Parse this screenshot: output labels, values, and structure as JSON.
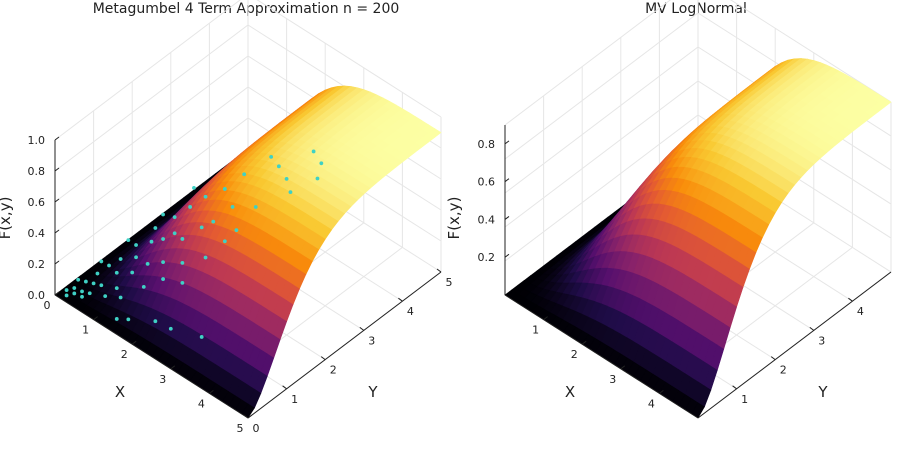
{
  "chart_data": [
    {
      "type": "surface",
      "title": "Metagumbel 4 Term Approximation n = 200",
      "xlabel": "X",
      "ylabel": "Y",
      "zlabel": "F(x,y)",
      "xlim": [
        0,
        5
      ],
      "ylim": [
        0,
        5
      ],
      "zlim": [
        0,
        1.0
      ],
      "x_ticks": [
        "0",
        "1",
        "2",
        "3",
        "4",
        "5"
      ],
      "y_ticks": [
        "0",
        "1",
        "2",
        "3",
        "4",
        "5"
      ],
      "z_ticks": [
        "0.0",
        "0.2",
        "0.4",
        "0.6",
        "0.8",
        "1.0"
      ],
      "colormap": "inferno",
      "grid": true,
      "surface_peak": 0.9,
      "scatter": {
        "color": "#3fd1c5",
        "points": [
          [
            0.1,
            0.2,
            0.01
          ],
          [
            0.2,
            0.1,
            0.01
          ],
          [
            0.2,
            0.3,
            0.02
          ],
          [
            0.3,
            0.2,
            0.02
          ],
          [
            0.1,
            0.5,
            0.02
          ],
          [
            0.4,
            0.3,
            0.03
          ],
          [
            0.3,
            0.5,
            0.04
          ],
          [
            0.5,
            0.2,
            0.03
          ],
          [
            0.5,
            0.5,
            0.06
          ],
          [
            0.6,
            0.3,
            0.05
          ],
          [
            0.4,
            0.7,
            0.07
          ],
          [
            0.7,
            0.5,
            0.08
          ],
          [
            0.5,
            0.9,
            0.1
          ],
          [
            0.8,
            0.8,
            0.12
          ],
          [
            0.9,
            0.4,
            0.06
          ],
          [
            1.0,
            0.6,
            0.09
          ],
          [
            0.6,
            1.1,
            0.12
          ],
          [
            1.1,
            0.9,
            0.15
          ],
          [
            0.9,
            1.2,
            0.16
          ],
          [
            1.2,
            0.5,
            0.08
          ],
          [
            0.7,
            1.4,
            0.17
          ],
          [
            1.3,
            1.1,
            0.2
          ],
          [
            1.0,
            1.5,
            0.22
          ],
          [
            1.5,
            0.8,
            0.14
          ],
          [
            1.2,
            1.6,
            0.25
          ],
          [
            1.6,
            1.2,
            0.24
          ],
          [
            0.8,
            1.8,
            0.22
          ],
          [
            1.4,
            1.7,
            0.3
          ],
          [
            1.8,
            1.0,
            0.2
          ],
          [
            1.1,
            2.0,
            0.3
          ],
          [
            1.7,
            1.6,
            0.33
          ],
          [
            2.0,
            1.3,
            0.28
          ],
          [
            1.3,
            2.2,
            0.36
          ],
          [
            1.9,
            1.9,
            0.38
          ],
          [
            2.2,
            1.1,
            0.22
          ],
          [
            1.5,
            2.4,
            0.42
          ],
          [
            2.1,
            2.0,
            0.43
          ],
          [
            2.4,
            1.5,
            0.34
          ],
          [
            1.8,
            2.6,
            0.48
          ],
          [
            2.3,
            2.3,
            0.5
          ],
          [
            2.6,
            1.8,
            0.42
          ],
          [
            2.0,
            2.9,
            0.55
          ],
          [
            2.8,
            2.4,
            0.56
          ],
          [
            3.0,
            3.0,
            0.66
          ],
          [
            2.6,
            3.2,
            0.64
          ],
          [
            3.3,
            2.8,
            0.66
          ],
          [
            2.4,
            0.6,
            0.05
          ],
          [
            2.9,
            0.9,
            0.02
          ],
          [
            1.6,
            0.3,
            0.04
          ],
          [
            2.1,
            0.5,
            0.07
          ],
          [
            0.3,
            1.6,
            0.1
          ],
          [
            0.2,
            1.0,
            0.06
          ],
          [
            3.4,
            3.5,
            0.73
          ],
          [
            3.6,
            3.2,
            0.72
          ],
          [
            1.0,
            2.6,
            0.36
          ],
          [
            2.2,
            3.4,
            0.6
          ],
          [
            0.6,
            2.2,
            0.2
          ],
          [
            1.4,
            0.2,
            0.03
          ],
          [
            3.1,
            3.6,
            0.74
          ],
          [
            2.7,
            2.0,
            0.47
          ]
        ]
      }
    },
    {
      "type": "surface",
      "title": "MV LogNormal",
      "xlabel": "X",
      "ylabel": "Y",
      "zlabel": "F(x,y)",
      "xlim": [
        0,
        5
      ],
      "ylim": [
        0,
        5
      ],
      "zlim": [
        0,
        0.9
      ],
      "x_ticks": [
        "1",
        "2",
        "3",
        "4"
      ],
      "y_ticks": [
        "1",
        "2",
        "3",
        "4"
      ],
      "z_ticks": [
        "0.2",
        "0.4",
        "0.6",
        "0.8"
      ],
      "colormap": "inferno",
      "grid": true,
      "surface_peak": 0.9
    }
  ]
}
